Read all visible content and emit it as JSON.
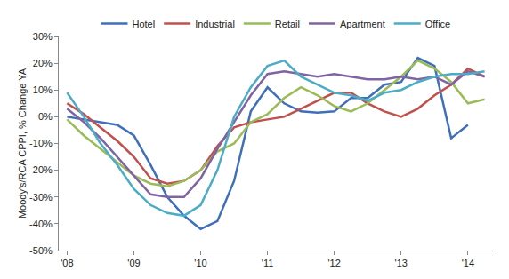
{
  "chart_data": {
    "type": "line",
    "y_label": "Moody's/RCA CPPI, % Change YA",
    "categories": [
      "'08",
      null,
      null,
      null,
      "'09",
      null,
      null,
      null,
      "'10",
      null,
      null,
      null,
      "'11",
      null,
      null,
      null,
      "'12",
      null,
      null,
      null,
      "'13",
      null,
      null,
      null,
      "'14",
      null
    ],
    "series": [
      {
        "name": "Hotel",
        "color": "#3f6fba",
        "values": [
          0,
          -1,
          -2,
          -3,
          -7,
          -18,
          -30,
          -37,
          -42,
          -39,
          -24,
          2,
          11,
          5,
          2,
          1.5,
          2,
          7,
          7,
          12,
          13,
          22,
          19,
          -8,
          -3,
          null
        ]
      },
      {
        "name": "Industrial",
        "color": "#c0504d",
        "values": [
          5,
          1,
          -4,
          -9,
          -15,
          -23,
          -25,
          -24,
          -20,
          -11,
          -4,
          -2,
          -1,
          0,
          3,
          6,
          9,
          9,
          5,
          2,
          0,
          3,
          8,
          12,
          18,
          15
        ]
      },
      {
        "name": "Retail",
        "color": "#9bbb59",
        "values": [
          -1,
          -7,
          -12,
          -17,
          -22,
          -25,
          -26,
          -24,
          -20,
          -13,
          -10,
          -2,
          1,
          7,
          11,
          8,
          4,
          2,
          5,
          10,
          15,
          21,
          18,
          13,
          5,
          6.5
        ]
      },
      {
        "name": "Apartment",
        "color": "#8064a2",
        "values": [
          3,
          -2,
          -8,
          -15,
          -22,
          -29,
          -30,
          -30,
          -23,
          -12,
          -2,
          8,
          16,
          17,
          16,
          15,
          16,
          15,
          14,
          14,
          15,
          14,
          15,
          12,
          17,
          15
        ]
      },
      {
        "name": "Office",
        "color": "#4bacc6",
        "values": [
          9,
          0,
          -10,
          -18,
          -27,
          -33,
          -36,
          -37,
          -33,
          -20,
          0,
          11,
          19,
          21,
          15,
          12,
          9,
          8,
          6,
          9,
          10,
          13,
          15,
          16,
          16,
          17
        ]
      }
    ],
    "ylim": [
      -50,
      30
    ],
    "yticks": [
      {
        "value": -50,
        "label": "-50%"
      },
      {
        "value": -40,
        "label": "-40%"
      },
      {
        "value": -30,
        "label": "-30%"
      },
      {
        "value": -20,
        "label": "-20%"
      },
      {
        "value": -10,
        "label": "-10%"
      },
      {
        "value": 0,
        "label": "0%"
      },
      {
        "value": 10,
        "label": "10%"
      },
      {
        "value": 20,
        "label": "20%"
      },
      {
        "value": 30,
        "label": "30%"
      }
    ],
    "grid": false,
    "legend": "top"
  }
}
